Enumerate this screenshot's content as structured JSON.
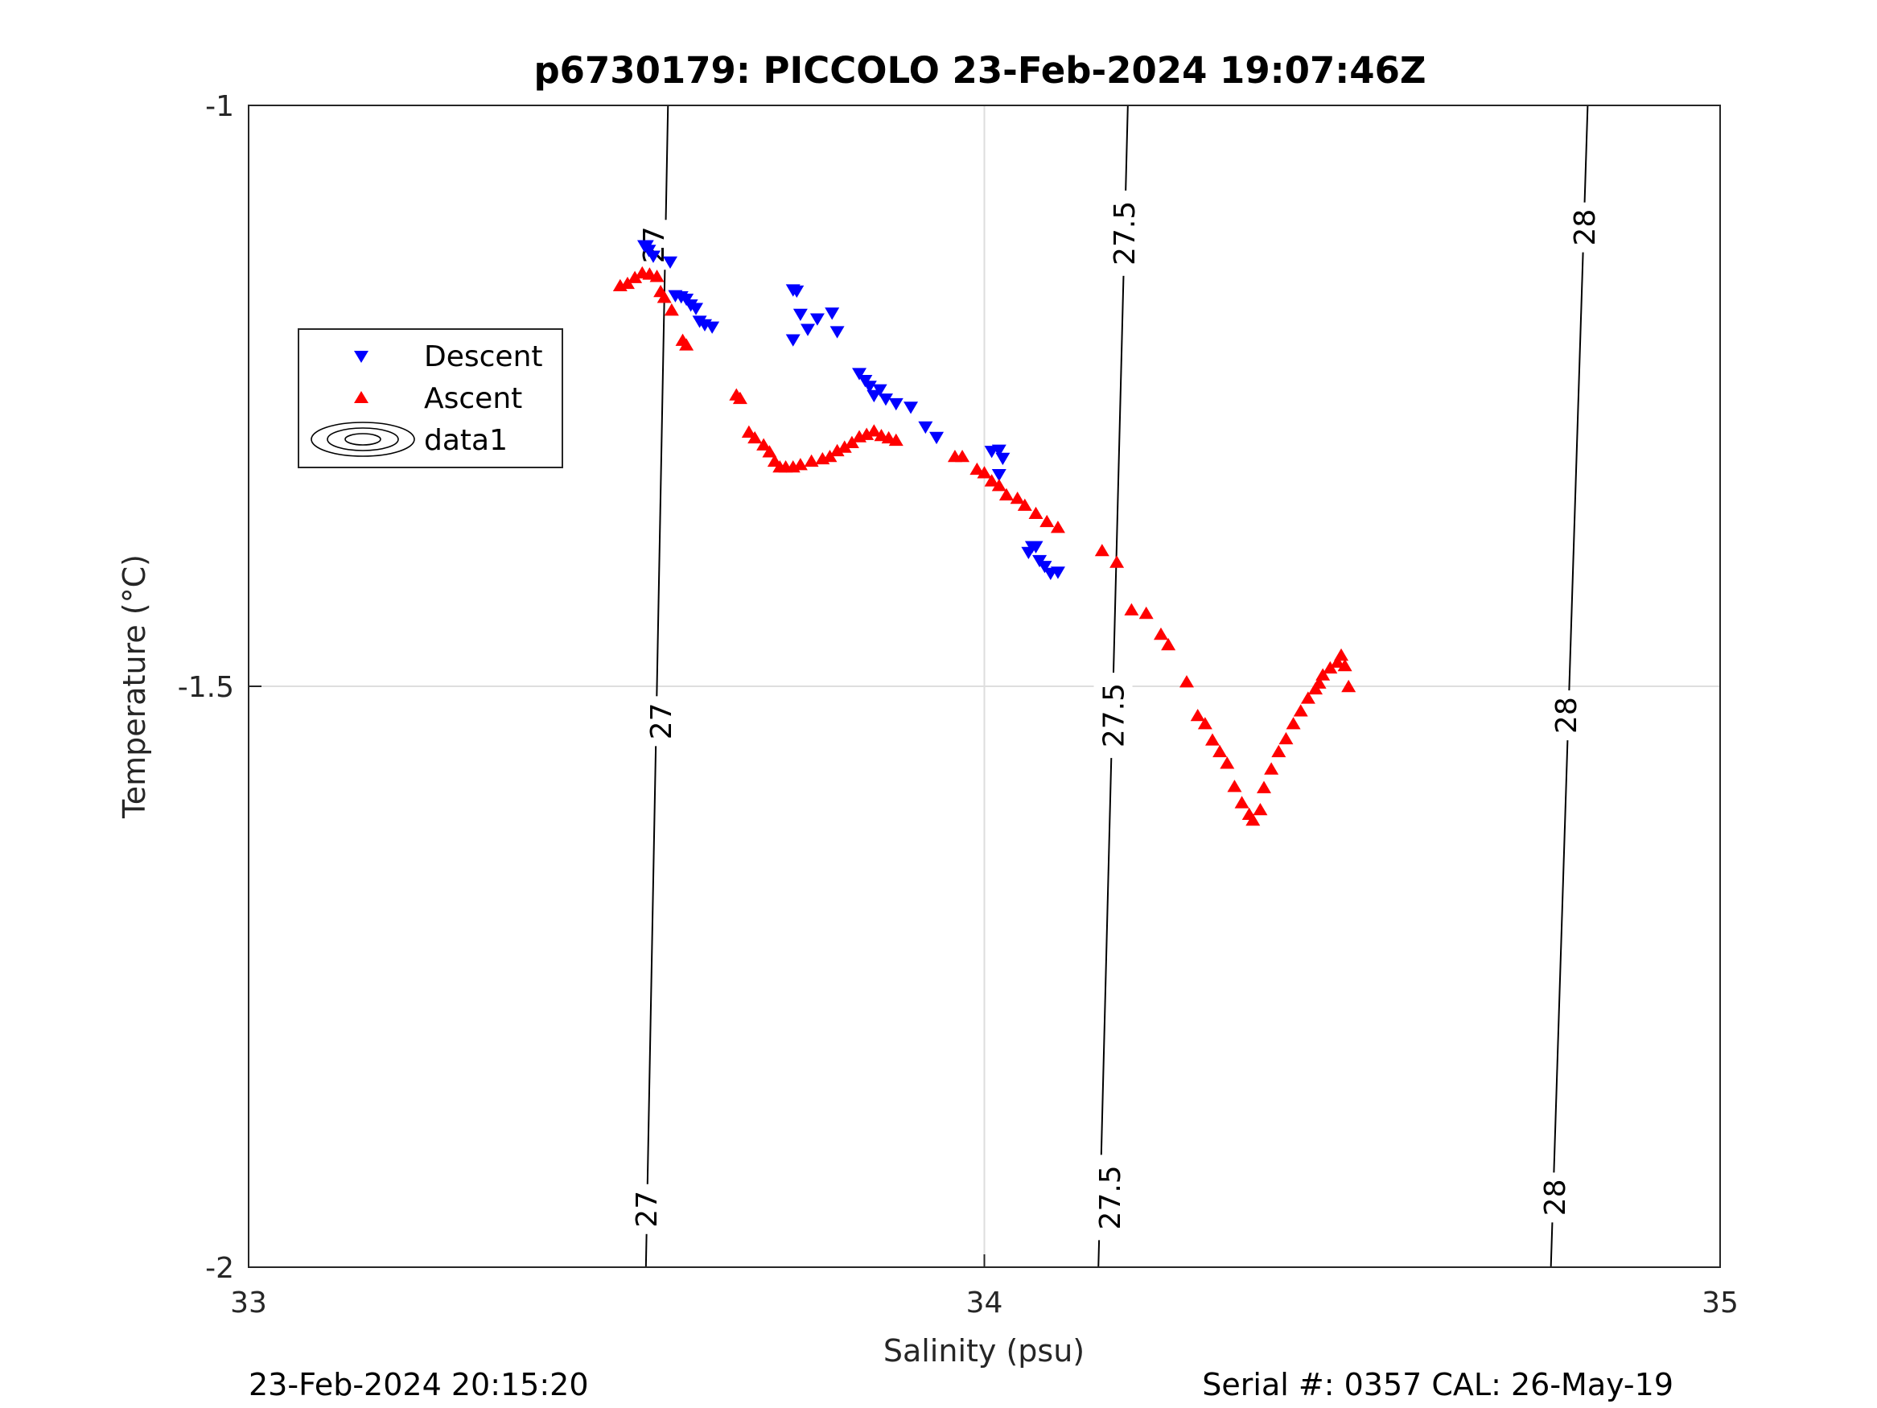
{
  "chart_data": {
    "type": "scatter",
    "title": "p6730179: PICCOLO 23-Feb-2024 19:07:46Z",
    "xlabel": "Salinity (psu)",
    "ylabel": "Temperature (°C)",
    "xlim": [
      33,
      35
    ],
    "ylim": [
      -2,
      -1
    ],
    "xticks": [
      "33",
      "34",
      "35"
    ],
    "yticks": [
      "-2",
      "-1.5",
      "-1"
    ],
    "grid": true,
    "legend": {
      "placement": "left",
      "entries": [
        "Descent",
        "Ascent",
        "data1"
      ]
    },
    "series": [
      {
        "name": "Descent",
        "color": "#0000ff",
        "marker": "triangle-down",
        "points": [
          [
            33.538,
            -1.121
          ],
          [
            33.541,
            -1.121
          ],
          [
            33.544,
            -1.125
          ],
          [
            33.55,
            -1.13
          ],
          [
            33.573,
            -1.135
          ],
          [
            33.58,
            -1.164
          ],
          [
            33.588,
            -1.165
          ],
          [
            33.595,
            -1.167
          ],
          [
            33.601,
            -1.172
          ],
          [
            33.608,
            -1.175
          ],
          [
            33.613,
            -1.186
          ],
          [
            33.62,
            -1.189
          ],
          [
            33.63,
            -1.191
          ],
          [
            33.74,
            -1.202
          ],
          [
            33.76,
            -1.193
          ],
          [
            33.74,
            -1.159
          ],
          [
            33.745,
            -1.16
          ],
          [
            33.75,
            -1.18
          ],
          [
            33.773,
            -1.184
          ],
          [
            33.793,
            -1.179
          ],
          [
            33.8,
            -1.195
          ],
          [
            33.83,
            -1.231
          ],
          [
            33.838,
            -1.237
          ],
          [
            33.844,
            -1.242
          ],
          [
            33.85,
            -1.25
          ],
          [
            33.858,
            -1.245
          ],
          [
            33.866,
            -1.253
          ],
          [
            33.88,
            -1.257
          ],
          [
            33.9,
            -1.26
          ],
          [
            33.92,
            -1.277
          ],
          [
            33.935,
            -1.286
          ],
          [
            34.01,
            -1.298
          ],
          [
            34.02,
            -1.297
          ],
          [
            34.025,
            -1.304
          ],
          [
            34.02,
            -1.318
          ],
          [
            34.06,
            -1.385
          ],
          [
            34.065,
            -1.38
          ],
          [
            34.07,
            -1.38
          ],
          [
            34.075,
            -1.392
          ],
          [
            34.082,
            -1.397
          ],
          [
            34.09,
            -1.403
          ],
          [
            34.1,
            -1.402
          ]
        ]
      },
      {
        "name": "Ascent",
        "color": "#ff0000",
        "marker": "triangle-up",
        "points": [
          [
            33.505,
            -1.155
          ],
          [
            33.515,
            -1.153
          ],
          [
            33.525,
            -1.148
          ],
          [
            33.535,
            -1.144
          ],
          [
            33.545,
            -1.145
          ],
          [
            33.555,
            -1.147
          ],
          [
            33.56,
            -1.16
          ],
          [
            33.565,
            -1.165
          ],
          [
            33.575,
            -1.176
          ],
          [
            33.59,
            -1.202
          ],
          [
            33.595,
            -1.206
          ],
          [
            33.663,
            -1.249
          ],
          [
            33.668,
            -1.252
          ],
          [
            33.68,
            -1.281
          ],
          [
            33.688,
            -1.286
          ],
          [
            33.7,
            -1.292
          ],
          [
            33.708,
            -1.298
          ],
          [
            33.715,
            -1.306
          ],
          [
            33.722,
            -1.311
          ],
          [
            33.73,
            -1.311
          ],
          [
            33.74,
            -1.311
          ],
          [
            33.75,
            -1.309
          ],
          [
            33.765,
            -1.306
          ],
          [
            33.78,
            -1.304
          ],
          [
            33.79,
            -1.302
          ],
          [
            33.8,
            -1.297
          ],
          [
            33.81,
            -1.294
          ],
          [
            33.82,
            -1.29
          ],
          [
            33.83,
            -1.285
          ],
          [
            33.84,
            -1.283
          ],
          [
            33.85,
            -1.28
          ],
          [
            33.86,
            -1.284
          ],
          [
            33.87,
            -1.286
          ],
          [
            33.88,
            -1.288
          ],
          [
            33.96,
            -1.302
          ],
          [
            33.97,
            -1.302
          ],
          [
            33.99,
            -1.313
          ],
          [
            34.0,
            -1.316
          ],
          [
            34.01,
            -1.323
          ],
          [
            34.02,
            -1.327
          ],
          [
            34.03,
            -1.335
          ],
          [
            34.045,
            -1.338
          ],
          [
            34.055,
            -1.344
          ],
          [
            34.07,
            -1.351
          ],
          [
            34.085,
            -1.358
          ],
          [
            34.1,
            -1.363
          ],
          [
            34.16,
            -1.383
          ],
          [
            34.18,
            -1.393
          ],
          [
            34.2,
            -1.434
          ],
          [
            34.22,
            -1.437
          ],
          [
            34.24,
            -1.455
          ],
          [
            34.25,
            -1.464
          ],
          [
            34.275,
            -1.496
          ],
          [
            34.29,
            -1.525
          ],
          [
            34.3,
            -1.532
          ],
          [
            34.31,
            -1.546
          ],
          [
            34.32,
            -1.556
          ],
          [
            34.33,
            -1.566
          ],
          [
            34.34,
            -1.586
          ],
          [
            34.35,
            -1.6
          ],
          [
            34.36,
            -1.61
          ],
          [
            34.365,
            -1.615
          ],
          [
            34.375,
            -1.606
          ],
          [
            34.38,
            -1.587
          ],
          [
            34.39,
            -1.571
          ],
          [
            34.4,
            -1.556
          ],
          [
            34.41,
            -1.545
          ],
          [
            34.42,
            -1.532
          ],
          [
            34.43,
            -1.521
          ],
          [
            34.44,
            -1.51
          ],
          [
            34.45,
            -1.502
          ],
          [
            34.455,
            -1.497
          ],
          [
            34.46,
            -1.49
          ],
          [
            34.47,
            -1.484
          ],
          [
            34.48,
            -1.479
          ],
          [
            34.485,
            -1.473
          ],
          [
            34.49,
            -1.482
          ],
          [
            34.495,
            -1.5
          ]
        ]
      }
    ],
    "contours": [
      {
        "label": "27",
        "line": [
          [
            33.57,
            -1.0
          ],
          [
            33.54,
            -2.0
          ]
        ],
        "label_pos": [
          [
            33.55,
            -1.12
          ],
          [
            33.56,
            -1.53
          ],
          [
            33.54,
            -1.95
          ]
        ]
      },
      {
        "label": "27.5",
        "line": [
          [
            34.195,
            -1.0
          ],
          [
            34.155,
            -2.0
          ]
        ],
        "label_pos": [
          [
            34.19,
            -1.11
          ],
          [
            34.175,
            -1.525
          ],
          [
            34.17,
            -1.94
          ]
        ]
      },
      {
        "label": "28",
        "line": [
          [
            34.82,
            -1.0
          ],
          [
            34.77,
            -2.0
          ]
        ],
        "label_pos": [
          [
            34.815,
            -1.105
          ],
          [
            34.79,
            -1.525
          ],
          [
            34.775,
            -1.94
          ]
        ]
      }
    ]
  },
  "footer": {
    "timestamp": "23-Feb-2024 20:15:20",
    "serial": "Serial #: 0357  CAL: 26-May-19"
  }
}
